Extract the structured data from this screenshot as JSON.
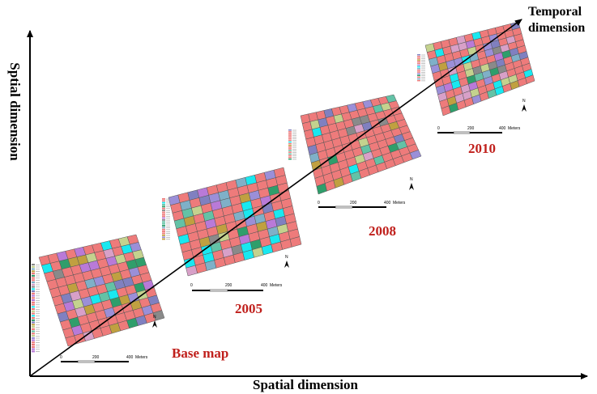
{
  "axes": {
    "x_label": "Spatial dimension",
    "y_label": "Sptial dimension",
    "temporal_label_line1": "Temporal",
    "temporal_label_line2": "dimension"
  },
  "snapshots": [
    {
      "id": "base",
      "label": "Base map",
      "scale": {
        "zero": "0",
        "mid": "200",
        "max": "400",
        "unit": "Meters"
      },
      "north": "N"
    },
    {
      "id": "2005",
      "label": "2005",
      "scale": {
        "zero": "0",
        "mid": "200",
        "max": "400",
        "unit": "Meters"
      },
      "north": "N"
    },
    {
      "id": "2008",
      "label": "2008",
      "scale": {
        "zero": "0",
        "mid": "200",
        "max": "400",
        "unit": "Meters"
      },
      "north": "N"
    },
    {
      "id": "2010",
      "label": "2010",
      "scale": {
        "zero": "0",
        "mid": "200",
        "max": "400",
        "unit": "Meters"
      },
      "north": "N"
    }
  ],
  "colors": {
    "base_cell": "#ee7b7b",
    "year_label": "#c0201c",
    "grid_line": "#555555",
    "palette": [
      "#9b8fd8",
      "#19e8f0",
      "#c4d28e",
      "#2f9e6b",
      "#b97ad8",
      "#7fb0c8",
      "#8a8a8a",
      "#d8a0c8",
      "#63c2a6",
      "#c0a040",
      "#8080c0"
    ]
  }
}
